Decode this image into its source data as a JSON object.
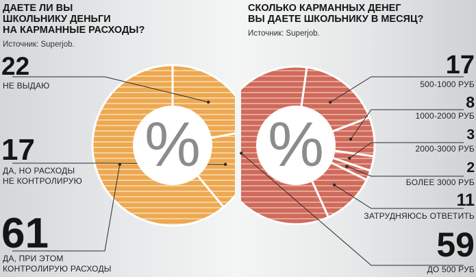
{
  "chart_data": [
    {
      "type": "pie",
      "title": "ДАЕТЕ ЛИ ВЫ\nШКОЛЬНИКУ ДЕНЬГИ\nНА КАРМАННЫЕ РАСХОДЫ?",
      "source": "Источник: Superjob.",
      "unit_symbol": "%",
      "colors": {
        "fill": "#eda852",
        "stripe": "#f7d29b"
      },
      "slices": [
        {
          "value": "22",
          "label": "НЕ ВЫДАЮ"
        },
        {
          "value": "17",
          "label": "ДА, НО РАСХОДЫ\nНЕ КОНТРОЛИРУЮ"
        },
        {
          "value": "61",
          "label": "ДА, ПРИ ЭТОМ\nКОНТРОЛИРУЮ РАСХОДЫ"
        }
      ]
    },
    {
      "type": "pie",
      "title": "СКОЛЬКО КАРМАННЫХ ДЕНЕГ\nВЫ ДАЕТЕ ШКОЛЬНИКУ В МЕСЯЦ?",
      "source": "Источник: Superjob.",
      "unit_symbol": "%",
      "colors": {
        "fill": "#cf6b5c",
        "stripe": "#e7a597"
      },
      "slices": [
        {
          "value": "17",
          "label": "500-1000 РУБ"
        },
        {
          "value": "8",
          "label": "1000-2000 РУБ"
        },
        {
          "value": "3",
          "label": "2000-3000 РУБ"
        },
        {
          "value": "2",
          "label": "БОЛЕЕ 3000 РУБ"
        },
        {
          "value": "11",
          "label": "ЗАТРУДНЯЮСЬ ОТВЕТИТЬ"
        },
        {
          "value": "59",
          "label": "ДО 500 РУБ"
        }
      ]
    }
  ]
}
